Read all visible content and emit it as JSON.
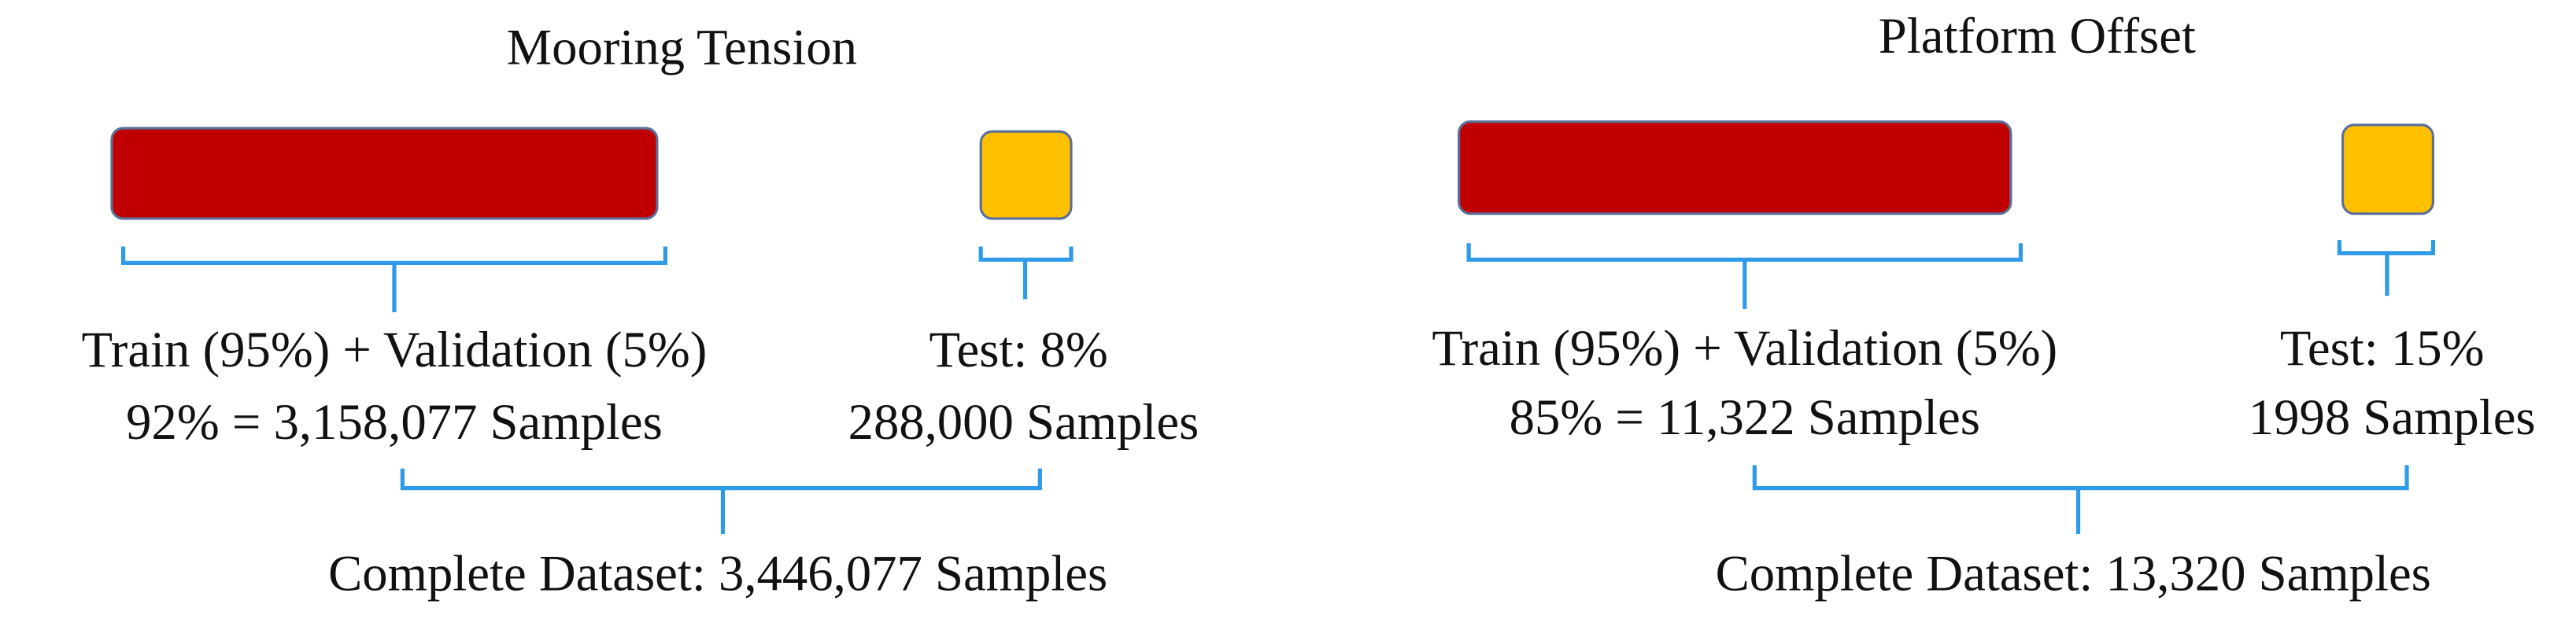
{
  "panels": [
    {
      "title": "Mooring Tension",
      "train_label": "Train (95%) + Validation (5%)",
      "train_samples": "92% = 3,158,077 Samples",
      "test_label": "Test: 8%",
      "test_samples": "288,000 Samples",
      "total": "Complete Dataset: 3,446,077 Samples"
    },
    {
      "title": "Platform Offset",
      "train_label": "Train (95%) + Validation (5%)",
      "train_samples": "85% = 11,322 Samples",
      "test_label": "Test: 15%",
      "test_samples": "1998 Samples",
      "total": "Complete Dataset: 13,320 Samples"
    }
  ]
}
